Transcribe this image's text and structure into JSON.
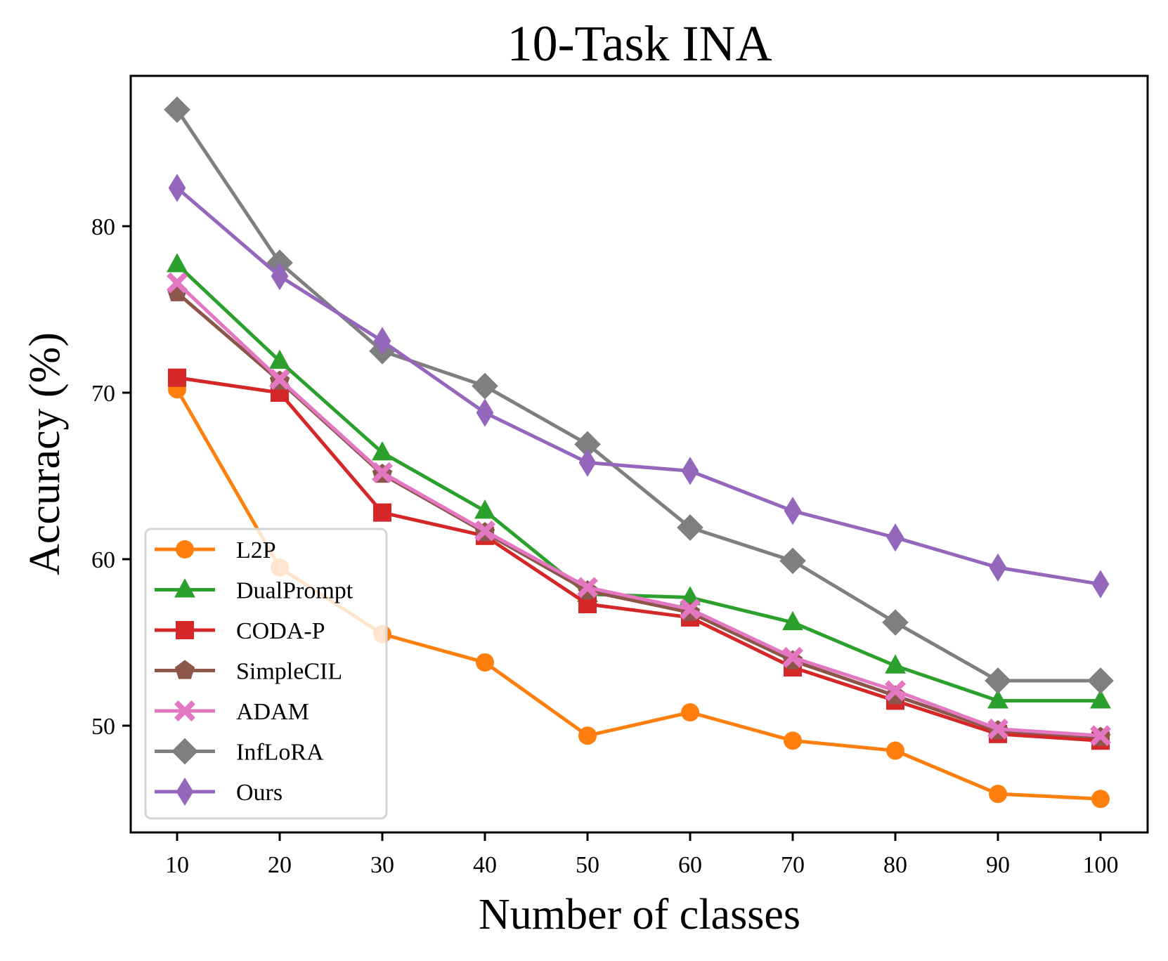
{
  "chart_data": {
    "type": "line",
    "title": "10-Task INA",
    "xlabel": "Number of classes",
    "ylabel": "Accuracy (%)",
    "x": [
      10,
      20,
      30,
      40,
      50,
      60,
      70,
      80,
      90,
      100
    ],
    "xticks": [
      "10",
      "20",
      "30",
      "40",
      "50",
      "60",
      "70",
      "80",
      "90",
      "100"
    ],
    "yticks": [
      "50",
      "60",
      "70",
      "80"
    ],
    "ytick_values": [
      50,
      60,
      70,
      80
    ],
    "xlim": [
      5.5,
      104.5
    ],
    "ylim": [
      43.5,
      88.9
    ],
    "grid": false,
    "legend_position": "lower-left",
    "series": [
      {
        "name": "L2P",
        "color": "#ff7f0e",
        "marker": "circle",
        "values": [
          70.2,
          59.5,
          55.5,
          53.8,
          49.4,
          50.8,
          49.1,
          48.5,
          45.9,
          45.6
        ]
      },
      {
        "name": "DualPrompt",
        "color": "#2ca02c",
        "marker": "triangle",
        "values": [
          77.7,
          71.9,
          66.4,
          62.9,
          57.9,
          57.7,
          56.2,
          53.6,
          51.5,
          51.5
        ]
      },
      {
        "name": "CODA-P",
        "color": "#d62728",
        "marker": "square",
        "values": [
          70.9,
          70.0,
          62.8,
          61.4,
          57.3,
          56.5,
          53.5,
          51.5,
          49.5,
          49.1
        ]
      },
      {
        "name": "SimpleCIL",
        "color": "#8c564b",
        "marker": "pentagon",
        "values": [
          76.0,
          70.7,
          65.1,
          61.6,
          58.1,
          56.8,
          53.9,
          51.8,
          49.7,
          49.3
        ]
      },
      {
        "name": "ADAM",
        "color": "#e377c2",
        "marker": "x-filled",
        "values": [
          76.6,
          70.8,
          65.2,
          61.7,
          58.3,
          57.0,
          54.1,
          52.1,
          49.8,
          49.4
        ]
      },
      {
        "name": "InfLoRA",
        "color": "#7f7f7f",
        "marker": "diamond",
        "values": [
          87.0,
          77.8,
          72.5,
          70.4,
          66.9,
          61.9,
          59.9,
          56.2,
          52.7,
          52.7
        ]
      },
      {
        "name": "Ours",
        "color": "#9467bd",
        "marker": "thin-diamond",
        "values": [
          82.3,
          77.0,
          73.1,
          68.8,
          65.8,
          65.3,
          62.9,
          61.3,
          59.5,
          58.5
        ]
      }
    ]
  }
}
